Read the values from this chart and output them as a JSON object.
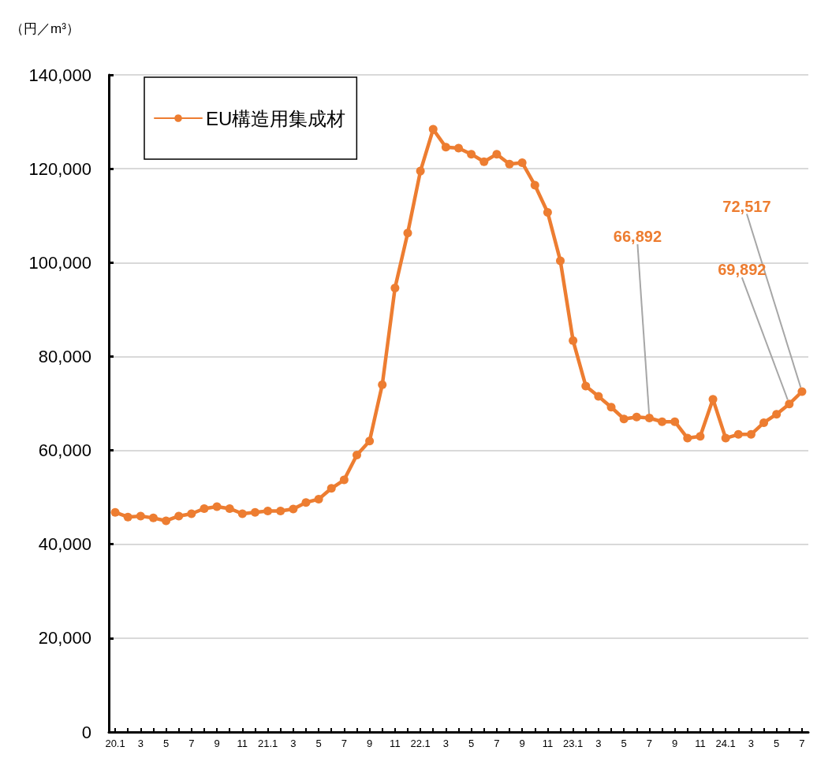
{
  "chart_data": {
    "type": "line",
    "ylabel": "（円／m³）",
    "categories": [
      "20.1",
      null,
      "3",
      null,
      "5",
      null,
      "7",
      null,
      "9",
      null,
      "11",
      null,
      "21.1",
      null,
      "3",
      null,
      "5",
      null,
      "7",
      null,
      "9",
      null,
      "11",
      null,
      "22.1",
      null,
      "3",
      null,
      "5",
      null,
      "7",
      null,
      "9",
      null,
      "11",
      null,
      "23.1",
      null,
      "3",
      null,
      "5",
      null,
      "7",
      null,
      "9",
      null,
      "11",
      null,
      "24.1",
      null,
      "3",
      null,
      "5",
      null,
      "7"
    ],
    "series": [
      {
        "name": "EU構造用集成材",
        "color": "#ed7d31",
        "values": [
          46800,
          45800,
          46000,
          45600,
          45000,
          46000,
          46500,
          47600,
          48000,
          47600,
          46500,
          46800,
          47100,
          47100,
          47500,
          48900,
          49600,
          51900,
          53700,
          59000,
          62000,
          74000,
          94600,
          106300,
          119500,
          128400,
          124600,
          124400,
          123100,
          121500,
          123100,
          121000,
          121300,
          116500,
          110700,
          100400,
          83400,
          73700,
          71500,
          69200,
          66700,
          67100,
          66892,
          66100,
          66100,
          62600,
          63000,
          70900,
          62600,
          63400,
          63400,
          65900,
          67700,
          69892,
          72517
        ],
        "value_labels": [
          null,
          null,
          null,
          null,
          null,
          null,
          null,
          null,
          null,
          null,
          null,
          null,
          null,
          null,
          null,
          null,
          null,
          null,
          null,
          null,
          null,
          null,
          null,
          null,
          null,
          null,
          null,
          null,
          null,
          null,
          null,
          null,
          null,
          null,
          null,
          null,
          null,
          null,
          null,
          null,
          null,
          null,
          "66,892",
          null,
          null,
          null,
          null,
          null,
          null,
          null,
          null,
          null,
          null,
          "69,892",
          "72,517"
        ]
      }
    ],
    "ylim": [
      0,
      140000
    ],
    "yticks": [
      0,
      {
        "value": 20000,
        "label": "20,000"
      },
      {
        "value": 40000,
        "label": "40,000"
      },
      {
        "value": 60000,
        "label": "60,000"
      },
      {
        "value": 80000,
        "label": "80,000"
      },
      {
        "value": 100000,
        "label": "100,000"
      },
      {
        "value": 120000,
        "label": "120,000"
      },
      {
        "value": 140000,
        "label": "140,000"
      }
    ],
    "grid": "y",
    "legend": "top left",
    "marker": "circle",
    "line_style": "solid"
  }
}
